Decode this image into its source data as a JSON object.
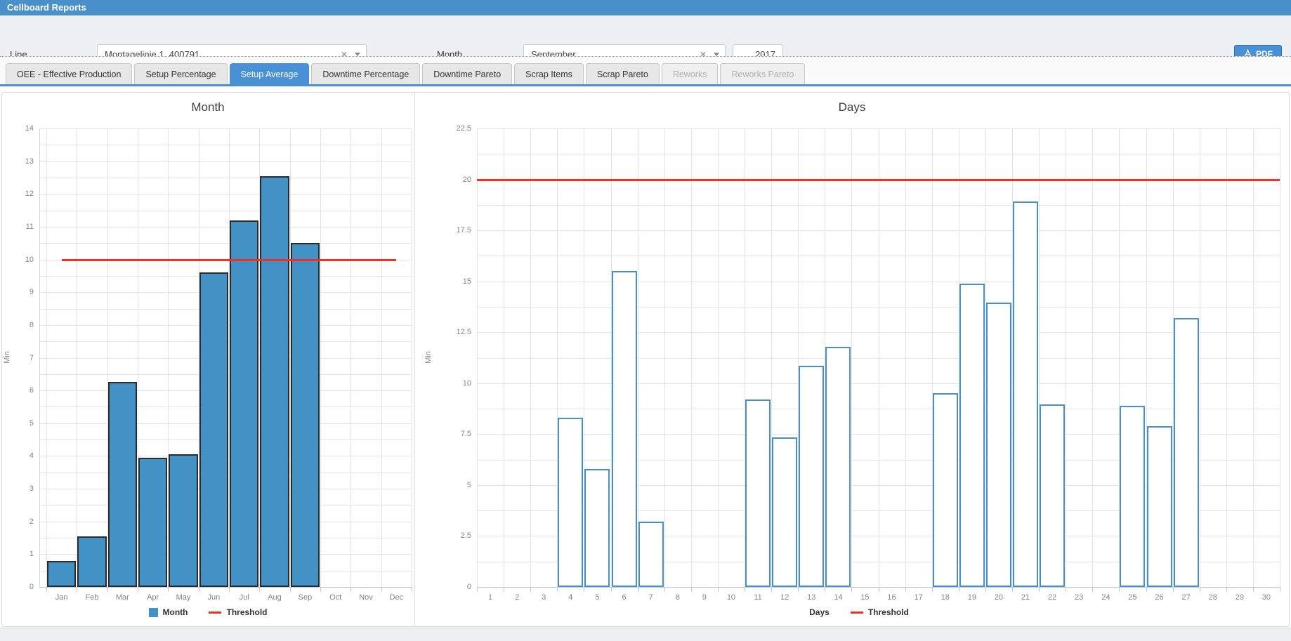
{
  "header": {
    "title": "Cellboard Reports"
  },
  "filters": {
    "line_label": "Line",
    "line_value": "Montagelinie 1, 400791",
    "month_label": "Month",
    "month_value": "September",
    "year_value": "2017",
    "pdf_label": "PDF"
  },
  "tabs": [
    {
      "label": "OEE - Effective Production",
      "state": "normal"
    },
    {
      "label": "Setup Percentage",
      "state": "normal"
    },
    {
      "label": "Setup Average",
      "state": "active"
    },
    {
      "label": "Downtime Percentage",
      "state": "normal"
    },
    {
      "label": "Downtime Pareto",
      "state": "normal"
    },
    {
      "label": "Scrap Items",
      "state": "normal"
    },
    {
      "label": "Scrap Pareto",
      "state": "normal"
    },
    {
      "label": "Reworks",
      "state": "disabled"
    },
    {
      "label": "Reworks Pareto",
      "state": "disabled"
    }
  ],
  "colors": {
    "header_bar": "#4a90cb",
    "accent_blue": "#4a90d4",
    "filter_bg": "#edf1f6",
    "bar_fill": "#4292c6",
    "bar_border": "#2b2b2b",
    "outline_bar_border": "#4a90c8",
    "threshold_red": "#ee3224",
    "grid_line": "#e4e4e4",
    "axis_line": "#b7cbe0"
  },
  "chart_data": [
    {
      "type": "bar",
      "title": "Month",
      "ylabel": "Min",
      "categories": [
        "Jan",
        "Feb",
        "Mar",
        "Apr",
        "May",
        "Jun",
        "Jul",
        "Aug",
        "Sep",
        "Oct",
        "Nov",
        "Dec"
      ],
      "values": [
        0.8,
        1.55,
        6.25,
        3.95,
        4.05,
        9.6,
        11.2,
        12.55,
        10.5,
        0,
        0,
        0
      ],
      "threshold": 10,
      "threshold_span": "centers",
      "ylim": [
        0,
        14
      ],
      "ytick_label_step": 1,
      "grid_step": 0.5,
      "grid": true,
      "legend_position": "bottom",
      "legend": [
        "Month",
        "Threshold"
      ],
      "bar_style": "filled"
    },
    {
      "type": "bar",
      "title": "Days",
      "ylabel": "Min",
      "categories": [
        "1",
        "2",
        "3",
        "4",
        "5",
        "6",
        "7",
        "8",
        "9",
        "10",
        "11",
        "12",
        "13",
        "14",
        "15",
        "16",
        "17",
        "18",
        "19",
        "20",
        "21",
        "22",
        "23",
        "24",
        "25",
        "26",
        "27",
        "28",
        "29",
        "30"
      ],
      "values": [
        0,
        0,
        0,
        8.3,
        5.8,
        15.5,
        3.2,
        0,
        0,
        0,
        9.2,
        7.35,
        10.85,
        11.8,
        0,
        0,
        0,
        9.5,
        14.9,
        13.95,
        18.9,
        8.95,
        0,
        0,
        8.9,
        7.9,
        13.2,
        0,
        0,
        0
      ],
      "threshold": 20,
      "threshold_span": "full",
      "ylim": [
        0,
        22.5
      ],
      "ytick_label_step": 2.5,
      "grid_step": 1.25,
      "grid": true,
      "legend_position": "bottom",
      "legend": [
        "Days",
        "Threshold"
      ],
      "bar_style": "outline"
    }
  ]
}
